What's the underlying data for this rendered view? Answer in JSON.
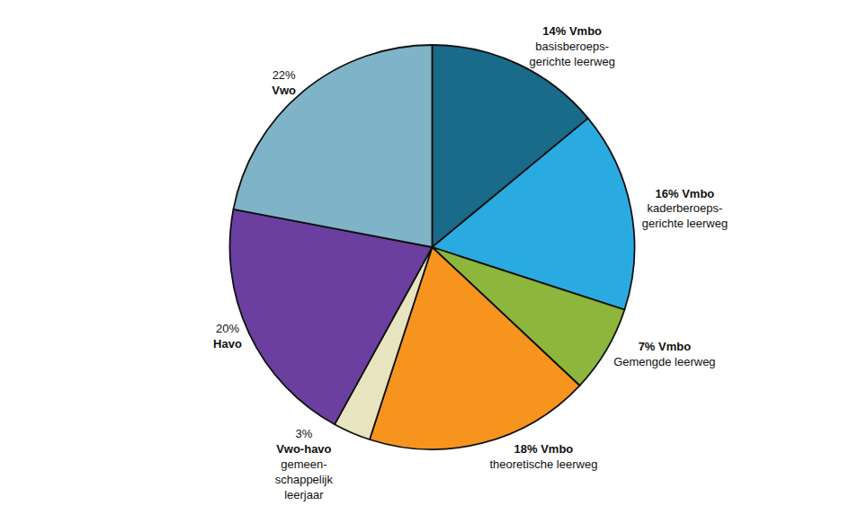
{
  "chart_data": {
    "type": "pie",
    "values": [
      14,
      16,
      7,
      18,
      3,
      20,
      22
    ],
    "value_labels": [
      "14% Vmbo\nbasisberoeps-\ngerichte leerweg",
      "16% Vmbo\nkaderberoeps-\ngerichte leerweg",
      "7% Vmbo\nGemengde leerweg",
      "18% Vmbo\ntheoretische leerweg",
      "3%\nVwo-havo\ngemeen-\nschappelijk\nleerjaar",
      "20%\nHavo",
      "22%\nVwo"
    ],
    "colors": [
      "#1a6a8a",
      "#29abe2",
      "#8db63c",
      "#f7941d",
      "#e8e4c0",
      "#6b3fa0",
      "#7fb3c8"
    ],
    "data_labels": true
  }
}
